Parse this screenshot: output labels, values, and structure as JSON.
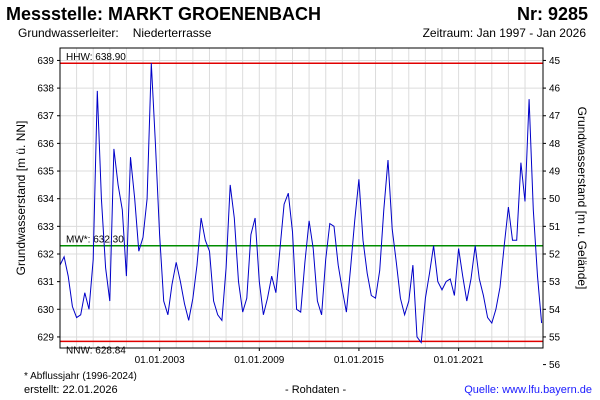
{
  "header": {
    "title": "Messstelle: MARKT GROENENBACH",
    "number": "Nr: 9285",
    "aquifer_label": "Grundwasserleiter:",
    "aquifer_value": "Niederterrasse",
    "period": "Zeitraum: Jan 1997 - Jan 2026"
  },
  "footer": {
    "footnote": "* Abflussjahr (1996-2024)",
    "created": "erstellt:  22.01.2026",
    "rawdata": "- Rohdaten -",
    "source": "Quelle: www.lfu.bayern.de"
  },
  "colors": {
    "series": "#0000c8",
    "hhw_nnw": "#e00000",
    "mw": "#008c00",
    "grid": "#dcdcdc",
    "plot_bg": "#ffffff",
    "frame": "#000000"
  },
  "chart_data": {
    "type": "line",
    "xlabel": "",
    "ylabel_left": "Grundwasserstand [m ü. NN]",
    "ylabel_right": "Grundwasserstand [m u. Gelände]",
    "x_range": [
      "1997-01-01",
      "2026-01-31"
    ],
    "x_ticks": [
      "01.01.2003",
      "01.01.2009",
      "01.01.2015",
      "01.01.2021"
    ],
    "ylim": [
      628.6,
      639.45
    ],
    "y_ticks_left": [
      629,
      630,
      631,
      632,
      633,
      634,
      635,
      636,
      637,
      638,
      639
    ],
    "y_ticks_right": [
      45,
      46,
      47,
      48,
      49,
      50,
      51,
      52,
      53,
      54,
      55,
      56
    ],
    "right_axis_zero_level": 684,
    "grid": true,
    "reference_lines": [
      {
        "name": "HHW",
        "label": "HHW: 638.90",
        "value": 638.9
      },
      {
        "name": "MW",
        "label": "MW*: 632.30",
        "value": 632.3
      },
      {
        "name": "NNW",
        "label": "NNW: 628.84",
        "value": 628.84
      }
    ],
    "series": [
      {
        "x": [
          "1997-01-01",
          "1997-04-01",
          "1997-07-01",
          "1997-10-01",
          "1998-01-01",
          "1998-04-01",
          "1998-07-01",
          "1998-10-01",
          "1999-01-01",
          "1999-04-01",
          "1999-07-01",
          "1999-10-01",
          "2000-01-01",
          "2000-04-01",
          "2000-07-01",
          "2000-10-01",
          "2001-01-01",
          "2001-04-01",
          "2001-07-01",
          "2001-10-01",
          "2002-01-01",
          "2002-04-01",
          "2002-07-01",
          "2002-10-01",
          "2003-01-01",
          "2003-04-01",
          "2003-07-01",
          "2003-10-01",
          "2004-01-01",
          "2004-04-01",
          "2004-07-01",
          "2004-10-01",
          "2005-01-01",
          "2005-04-01",
          "2005-07-01",
          "2005-10-01",
          "2006-01-01",
          "2006-04-01",
          "2006-07-01",
          "2006-10-01",
          "2007-01-01",
          "2007-04-01",
          "2007-07-01",
          "2007-10-01",
          "2008-01-01",
          "2008-04-01",
          "2008-07-01",
          "2008-10-01",
          "2009-01-01",
          "2009-04-01",
          "2009-07-01",
          "2009-10-01",
          "2010-01-01",
          "2010-04-01",
          "2010-07-01",
          "2010-10-01",
          "2011-01-01",
          "2011-04-01",
          "2011-07-01",
          "2011-10-01",
          "2012-01-01",
          "2012-04-01",
          "2012-07-01",
          "2012-10-01",
          "2013-01-01",
          "2013-04-01",
          "2013-07-01",
          "2013-10-01",
          "2014-01-01",
          "2014-04-01",
          "2014-07-01",
          "2014-10-01",
          "2015-01-01",
          "2015-04-01",
          "2015-07-01",
          "2015-10-01",
          "2016-01-01",
          "2016-04-01",
          "2016-07-01",
          "2016-10-01",
          "2017-01-01",
          "2017-04-01",
          "2017-07-01",
          "2017-10-01",
          "2018-01-01",
          "2018-04-01",
          "2018-07-01",
          "2018-10-01",
          "2019-01-01",
          "2019-04-01",
          "2019-07-01",
          "2019-10-01",
          "2020-01-01",
          "2020-04-01",
          "2020-07-01",
          "2020-10-01",
          "2021-01-01",
          "2021-04-01",
          "2021-07-01",
          "2021-10-01",
          "2022-01-01",
          "2022-04-01",
          "2022-07-01",
          "2022-10-01",
          "2023-01-01",
          "2023-04-01",
          "2023-07-01",
          "2023-10-01",
          "2024-01-01",
          "2024-04-01",
          "2024-07-01",
          "2024-10-01",
          "2025-01-01",
          "2025-04-01",
          "2025-07-01",
          "2025-10-01",
          "2026-01-01"
        ],
        "values": [
          631.6,
          631.9,
          631.2,
          630.1,
          629.7,
          629.8,
          630.6,
          630.0,
          631.8,
          637.9,
          634.0,
          631.5,
          630.3,
          635.8,
          634.5,
          633.6,
          631.2,
          635.5,
          634.0,
          632.1,
          632.6,
          634.0,
          638.9,
          636.0,
          632.7,
          630.3,
          629.8,
          630.9,
          631.7,
          631.0,
          630.2,
          629.6,
          630.4,
          631.6,
          633.3,
          632.5,
          632.1,
          630.3,
          629.8,
          629.6,
          631.5,
          634.5,
          633.3,
          631.0,
          629.9,
          630.4,
          632.7,
          633.3,
          631.0,
          629.8,
          630.4,
          631.2,
          630.6,
          632.2,
          633.8,
          634.2,
          632.8,
          630.0,
          629.9,
          631.7,
          633.2,
          632.2,
          630.3,
          629.8,
          631.8,
          633.1,
          633.0,
          631.6,
          630.7,
          629.9,
          631.5,
          633.2,
          634.7,
          632.5,
          631.3,
          630.5,
          630.4,
          631.4,
          633.6,
          635.4,
          632.9,
          631.7,
          630.4,
          629.8,
          630.3,
          631.6,
          629.0,
          628.8,
          630.4,
          631.3,
          632.3,
          631.0,
          630.7,
          631.0,
          631.1,
          630.5,
          632.2,
          631.2,
          630.3,
          631.1,
          632.3,
          631.1,
          630.5,
          629.7,
          629.5,
          630.0,
          630.8,
          632.3,
          633.7,
          632.5,
          632.5,
          635.3,
          633.9,
          637.6,
          633.6,
          631.2,
          629.5
        ]
      }
    ]
  }
}
